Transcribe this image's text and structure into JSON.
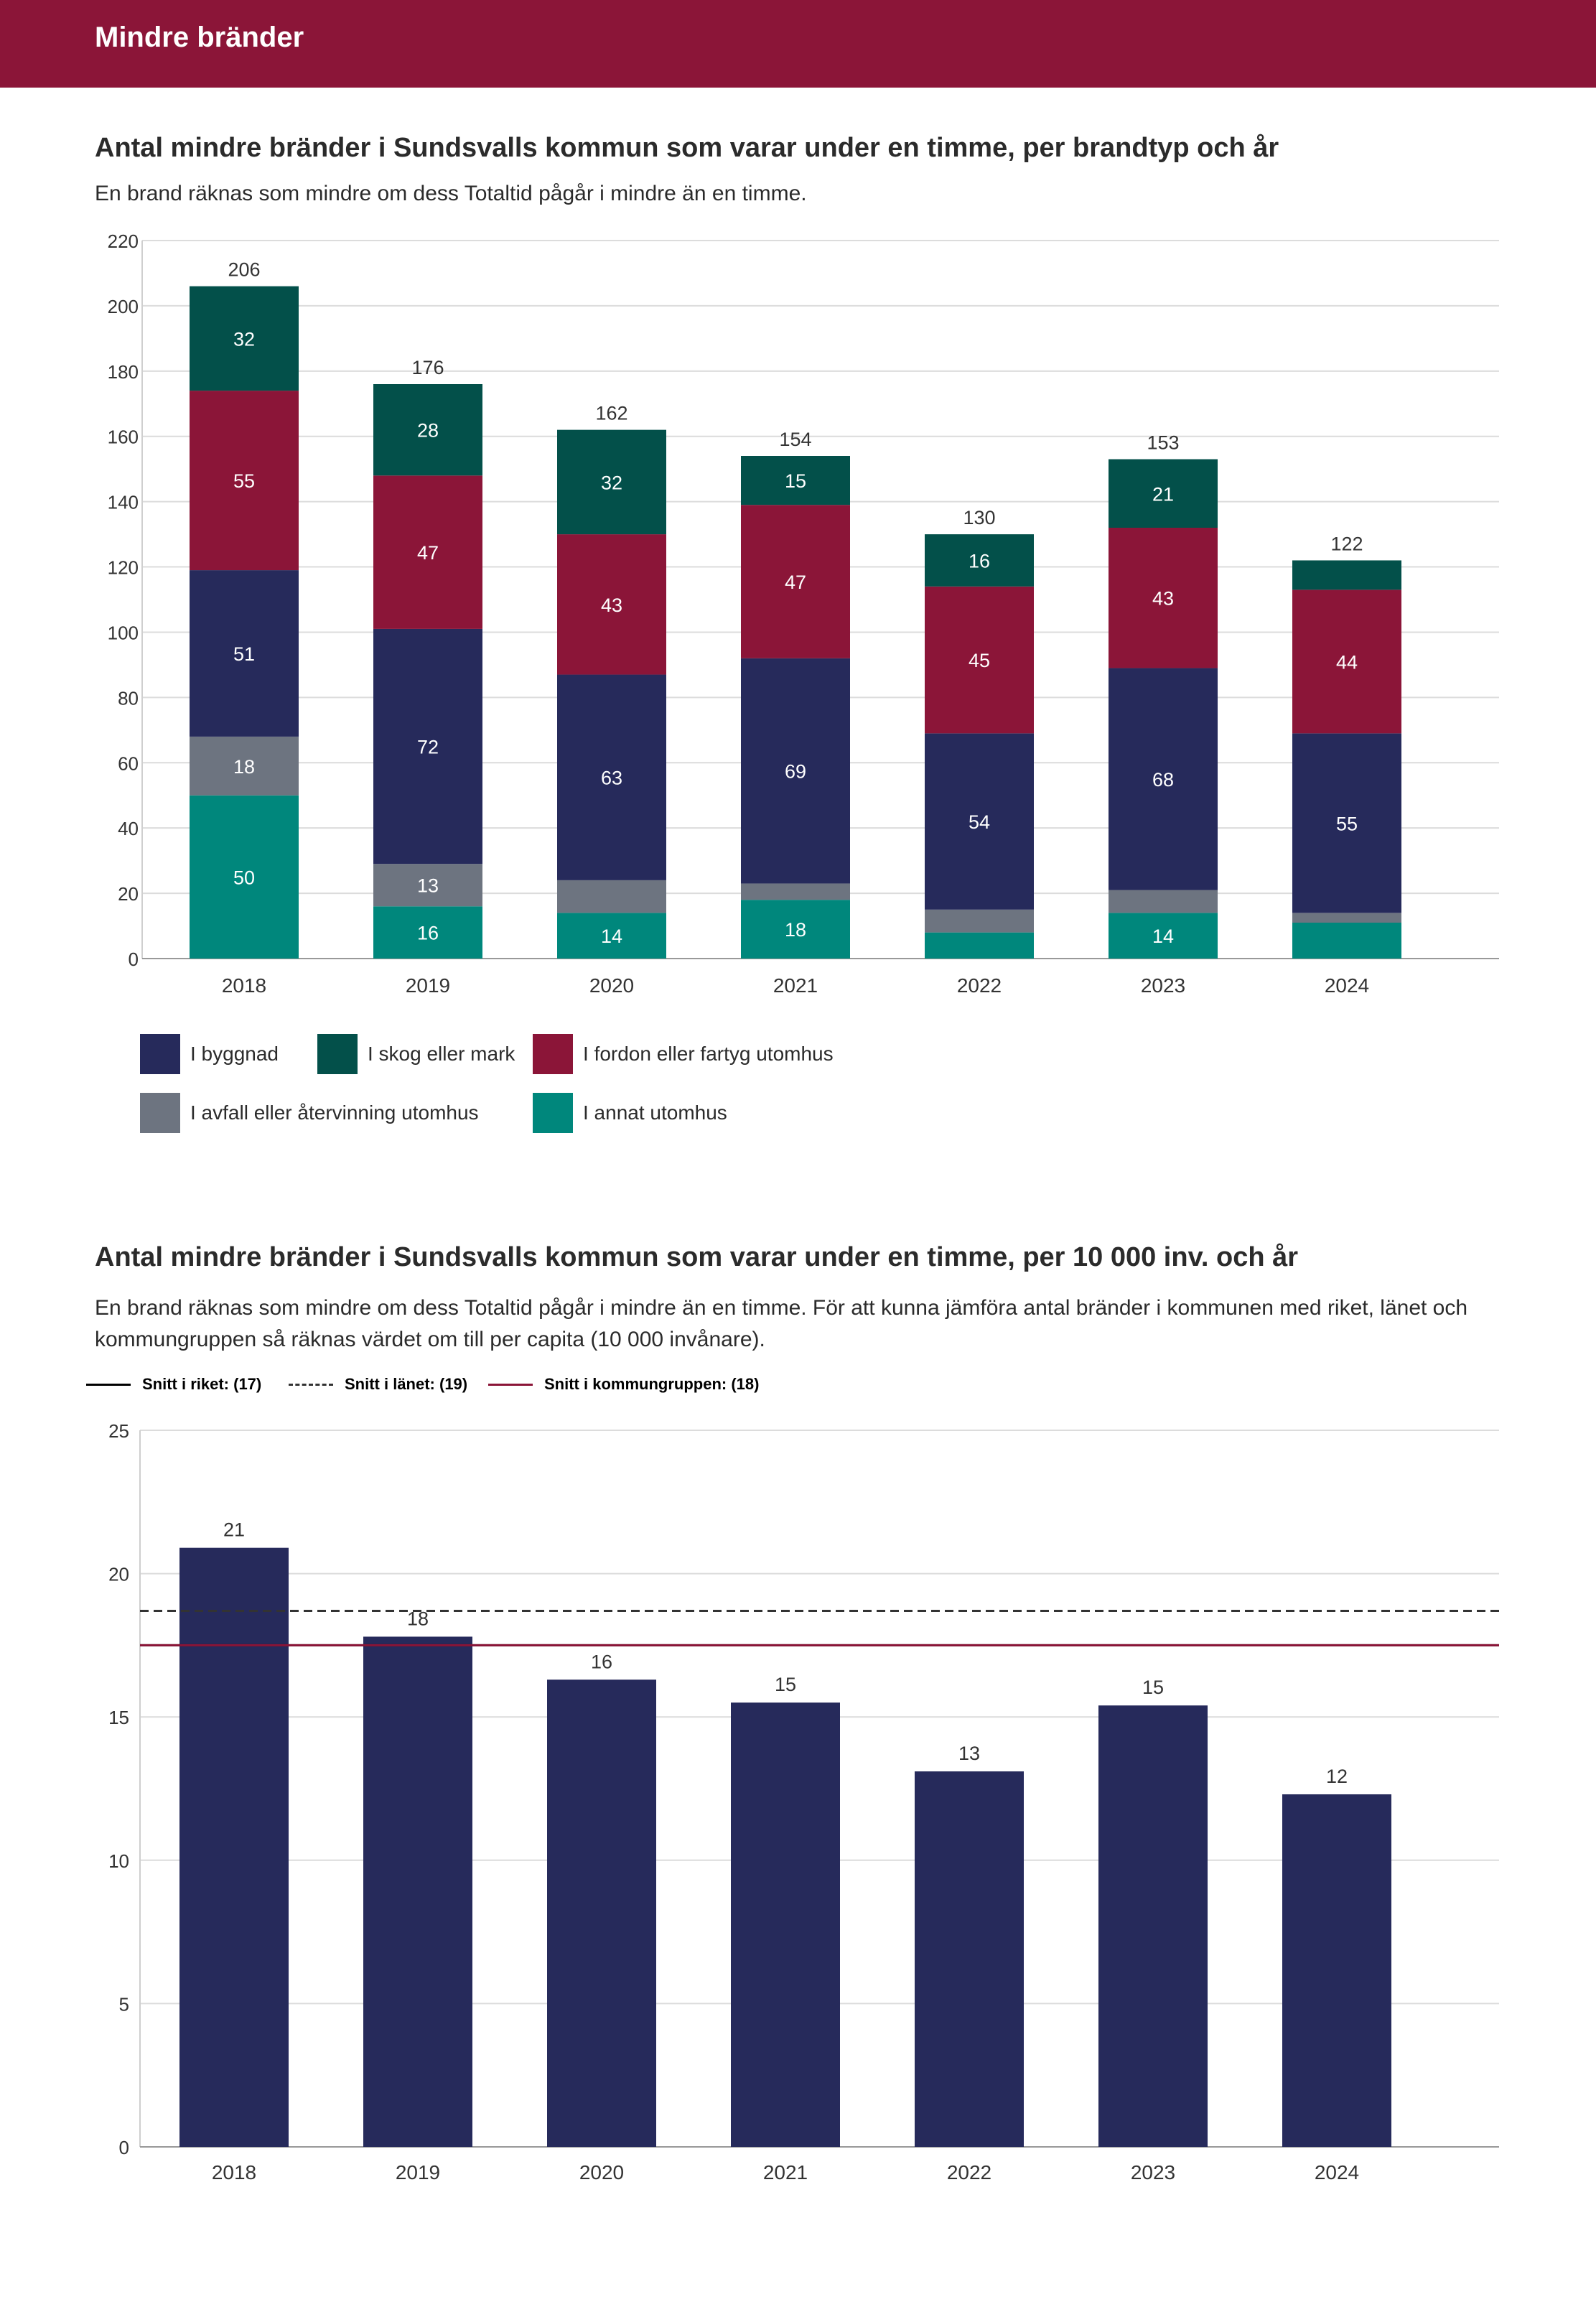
{
  "header": {
    "title": "Mindre bränder"
  },
  "chart1": {
    "title": "Antal mindre bränder i Sundsvalls kommun som varar under en timme, per brandtyp och år",
    "subtitle": "En brand räknas som mindre om dess Totaltid pågår i mindre än en timme."
  },
  "chart2": {
    "title": "Antal mindre bränder i Sundsvalls kommun som varar under en timme, per 10 000 inv. och år",
    "subtitle": "En brand räknas som mindre om dess Totaltid pågår i mindre än en timme. För att kunna jämföra antal bränder i kommunen med riket, länet och kommungruppen så räknas värdet om till per capita (10 000 invånare)."
  },
  "legend": [
    {
      "label": "I byggnad",
      "color": "#262a5b"
    },
    {
      "label": "I skog eller mark",
      "color": "#03504a"
    },
    {
      "label": "I fordon eller fartyg utomhus",
      "color": "#8b1538"
    },
    {
      "label": "I avfall eller återvinning utomhus",
      "color": "#6d7480"
    },
    {
      "label": "I annat utomhus",
      "color": "#00877c"
    }
  ],
  "reference_legend": [
    {
      "label": "Snitt i riket: (17)",
      "color": "#000000",
      "style": "solid"
    },
    {
      "label": "Snitt i länet: (19)",
      "color": "#333333",
      "style": "dashed"
    },
    {
      "label": "Snitt i kommungruppen: (18)",
      "color": "#8b1538",
      "style": "solid"
    }
  ],
  "chart_data": [
    {
      "type": "bar",
      "stacked": true,
      "title": "Antal mindre bränder i Sundsvalls kommun som varar under en timme, per brandtyp och år",
      "categories": [
        "2018",
        "2019",
        "2020",
        "2021",
        "2022",
        "2023",
        "2024"
      ],
      "ylim": [
        0,
        220
      ],
      "yticks": [
        0,
        20,
        40,
        60,
        80,
        100,
        120,
        140,
        160,
        180,
        200,
        220
      ],
      "grid": true,
      "legend_position": "bottom-left",
      "totals": [
        206,
        176,
        162,
        154,
        130,
        153,
        122
      ],
      "series": [
        {
          "name": "I annat utomhus",
          "color": "#00877c",
          "values": [
            50,
            16,
            14,
            18,
            8,
            14,
            11
          ]
        },
        {
          "name": "I avfall eller återvinning utomhus",
          "color": "#6d7480",
          "values": [
            18,
            13,
            10,
            5,
            7,
            7,
            3
          ]
        },
        {
          "name": "I byggnad",
          "color": "#262a5b",
          "values": [
            51,
            72,
            63,
            69,
            54,
            68,
            55
          ]
        },
        {
          "name": "I fordon eller fartyg utomhus",
          "color": "#8b1538",
          "values": [
            55,
            47,
            43,
            47,
            45,
            43,
            44
          ]
        },
        {
          "name": "I skog eller mark",
          "color": "#03504a",
          "values": [
            32,
            28,
            32,
            15,
            16,
            21,
            9
          ]
        }
      ],
      "segment_labels": [
        [
          "50",
          "18",
          "51",
          "55",
          "32"
        ],
        [
          "16",
          "13",
          "72",
          "47",
          "28"
        ],
        [
          "14",
          "",
          "63",
          "43",
          "32"
        ],
        [
          "18",
          "",
          "69",
          "47",
          "15"
        ],
        [
          "",
          "",
          "54",
          "45",
          "16"
        ],
        [
          "14",
          "",
          "68",
          "43",
          "21"
        ],
        [
          "",
          "",
          "55",
          "44",
          ""
        ]
      ]
    },
    {
      "type": "bar",
      "title": "Antal mindre bränder i Sundsvalls kommun som varar under en timme, per 10 000 inv. och år",
      "categories": [
        "2018",
        "2019",
        "2020",
        "2021",
        "2022",
        "2023",
        "2024"
      ],
      "values": [
        20.9,
        17.8,
        16.3,
        15.5,
        13.1,
        15.4,
        12.3
      ],
      "data_labels": [
        "21",
        "18",
        "16",
        "15",
        "13",
        "15",
        "12"
      ],
      "color": "#262a5b",
      "ylim": [
        0,
        25
      ],
      "yticks": [
        0,
        5,
        10,
        15,
        20,
        25
      ],
      "grid": true,
      "reference_lines": [
        {
          "name": "Snitt i riket",
          "value": 17.5,
          "color": "#000000",
          "style": "solid"
        },
        {
          "name": "Snitt i länet",
          "value": 18.7,
          "color": "#333333",
          "style": "dashed"
        },
        {
          "name": "Snitt i kommungruppen",
          "value": 17.5,
          "color": "#8b1538",
          "style": "solid"
        }
      ]
    }
  ]
}
